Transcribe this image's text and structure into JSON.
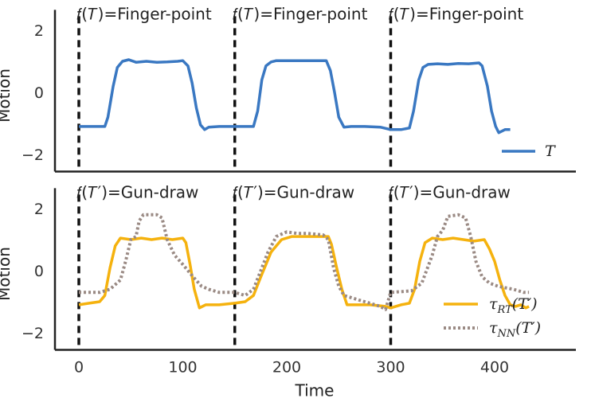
{
  "chart_data": [
    {
      "type": "line",
      "panel": "top",
      "ylabel": "Motion",
      "xlabel": "",
      "ylim": [
        -2.5,
        2.4
      ],
      "xlim": [
        -10,
        460
      ],
      "yticks": [
        "2",
        "0",
        "−2"
      ],
      "ytick_values": [
        2,
        0,
        -2
      ],
      "segment_boundaries": [
        0,
        150,
        300
      ],
      "segment_labels": [
        "𝑓(𝑇)=Finger-point",
        "𝑓(𝑇)=Finger-point",
        "𝑓(𝑇)=Finger-point"
      ],
      "legend_position": "lower-right",
      "colors": {
        "T": "#3a78c2"
      },
      "series": [
        {
          "name": "𝑇",
          "style": "solid",
          "points": [
            [
              0,
              -1.1
            ],
            [
              15,
              -1.1
            ],
            [
              25,
              -1.1
            ],
            [
              28,
              -0.8
            ],
            [
              33,
              0.2
            ],
            [
              37,
              0.8
            ],
            [
              42,
              1.0
            ],
            [
              48,
              1.05
            ],
            [
              55,
              0.97
            ],
            [
              65,
              1.0
            ],
            [
              75,
              0.97
            ],
            [
              85,
              0.98
            ],
            [
              95,
              1.0
            ],
            [
              100,
              1.02
            ],
            [
              105,
              0.85
            ],
            [
              109,
              0.3
            ],
            [
              113,
              -0.5
            ],
            [
              117,
              -1.05
            ],
            [
              121,
              -1.2
            ],
            [
              125,
              -1.12
            ],
            [
              135,
              -1.1
            ],
            [
              150,
              -1.1
            ],
            [
              160,
              -1.1
            ],
            [
              168,
              -1.1
            ],
            [
              172,
              -0.6
            ],
            [
              176,
              0.4
            ],
            [
              180,
              0.85
            ],
            [
              185,
              0.98
            ],
            [
              190,
              1.02
            ],
            [
              200,
              1.02
            ],
            [
              210,
              1.02
            ],
            [
              220,
              1.02
            ],
            [
              230,
              1.02
            ],
            [
              238,
              1.02
            ],
            [
              242,
              0.7
            ],
            [
              246,
              0.0
            ],
            [
              250,
              -0.8
            ],
            [
              255,
              -1.12
            ],
            [
              262,
              -1.1
            ],
            [
              275,
              -1.1
            ],
            [
              290,
              -1.12
            ],
            [
              300,
              -1.2
            ],
            [
              310,
              -1.2
            ],
            [
              318,
              -1.15
            ],
            [
              322,
              -0.6
            ],
            [
              327,
              0.4
            ],
            [
              331,
              0.8
            ],
            [
              336,
              0.9
            ],
            [
              345,
              0.92
            ],
            [
              355,
              0.9
            ],
            [
              365,
              0.93
            ],
            [
              375,
              0.92
            ],
            [
              385,
              0.95
            ],
            [
              388,
              0.85
            ],
            [
              393,
              0.2
            ],
            [
              397,
              -0.6
            ],
            [
              401,
              -1.1
            ],
            [
              404,
              -1.3
            ],
            [
              410,
              -1.2
            ],
            [
              415,
              -1.2
            ]
          ]
        }
      ]
    },
    {
      "type": "line",
      "panel": "bottom",
      "ylabel": "Motion",
      "xlabel": "Time",
      "ylim": [
        -2.5,
        2.4
      ],
      "xlim": [
        -10,
        460
      ],
      "xticks": [
        "0",
        "100",
        "200",
        "300",
        "400"
      ],
      "xtick_values": [
        0,
        100,
        200,
        300,
        400
      ],
      "yticks": [
        "2",
        "0",
        "−2"
      ],
      "ytick_values": [
        2,
        0,
        -2
      ],
      "segment_boundaries": [
        0,
        150,
        300
      ],
      "segment_labels": [
        "𝑓(𝑇′)=Gun-draw",
        "𝑓(𝑇′)=Gun-draw",
        "𝑓(𝑇′)=Gun-draw"
      ],
      "legend_position": "lower-right",
      "colors": {
        "tau_RT": "#f5b20e",
        "tau_NN": "#9a8a84"
      },
      "series": [
        {
          "name": "τ_RT(T′)",
          "legend_main": "τ",
          "legend_sub": "RT",
          "legend_arg": "(T′)",
          "style": "solid",
          "points": [
            [
              0,
              -1.1
            ],
            [
              10,
              -1.05
            ],
            [
              20,
              -1.0
            ],
            [
              25,
              -0.8
            ],
            [
              30,
              0.1
            ],
            [
              35,
              0.8
            ],
            [
              40,
              1.05
            ],
            [
              50,
              1.0
            ],
            [
              60,
              1.05
            ],
            [
              70,
              1.0
            ],
            [
              80,
              1.05
            ],
            [
              90,
              1.0
            ],
            [
              100,
              1.05
            ],
            [
              103,
              0.9
            ],
            [
              107,
              0.2
            ],
            [
              111,
              -0.6
            ],
            [
              116,
              -1.2
            ],
            [
              122,
              -1.1
            ],
            [
              135,
              -1.1
            ],
            [
              150,
              -1.05
            ],
            [
              160,
              -1.0
            ],
            [
              168,
              -0.8
            ],
            [
              175,
              -0.2
            ],
            [
              185,
              0.6
            ],
            [
              195,
              1.0
            ],
            [
              205,
              1.1
            ],
            [
              220,
              1.1
            ],
            [
              240,
              1.1
            ],
            [
              243,
              0.85
            ],
            [
              248,
              0.1
            ],
            [
              253,
              -0.6
            ],
            [
              258,
              -1.1
            ],
            [
              265,
              -1.1
            ],
            [
              280,
              -1.1
            ],
            [
              295,
              -1.15
            ],
            [
              300,
              -1.2
            ],
            [
              310,
              -1.1
            ],
            [
              318,
              -1.05
            ],
            [
              323,
              -0.6
            ],
            [
              328,
              0.3
            ],
            [
              333,
              0.9
            ],
            [
              340,
              1.05
            ],
            [
              350,
              1.0
            ],
            [
              360,
              1.05
            ],
            [
              370,
              1.0
            ],
            [
              380,
              0.95
            ],
            [
              390,
              1.0
            ],
            [
              395,
              0.7
            ],
            [
              400,
              0.3
            ],
            [
              405,
              -0.3
            ],
            [
              410,
              -0.8
            ],
            [
              415,
              -1.1
            ],
            [
              420,
              -1.15
            ],
            [
              425,
              -1.1
            ],
            [
              430,
              -1.2
            ],
            [
              433,
              -1.15
            ]
          ]
        },
        {
          "name": "τ_NN(T′)",
          "legend_main": "τ",
          "legend_sub": "NN",
          "legend_arg": "(T′)",
          "style": "dotted",
          "points": [
            [
              0,
              -0.7
            ],
            [
              20,
              -0.7
            ],
            [
              30,
              -0.6
            ],
            [
              40,
              -0.3
            ],
            [
              45,
              0.3
            ],
            [
              50,
              1.0
            ],
            [
              55,
              1.1
            ],
            [
              58,
              1.6
            ],
            [
              62,
              1.8
            ],
            [
              75,
              1.8
            ],
            [
              80,
              1.7
            ],
            [
              85,
              1.0
            ],
            [
              92,
              0.5
            ],
            [
              100,
              0.2
            ],
            [
              110,
              -0.2
            ],
            [
              118,
              -0.5
            ],
            [
              125,
              -0.6
            ],
            [
              135,
              -0.7
            ],
            [
              150,
              -0.7
            ],
            [
              160,
              -0.8
            ],
            [
              168,
              -0.6
            ],
            [
              175,
              0.0
            ],
            [
              182,
              0.6
            ],
            [
              190,
              1.1
            ],
            [
              200,
              1.25
            ],
            [
              210,
              1.2
            ],
            [
              220,
              1.2
            ],
            [
              235,
              1.15
            ],
            [
              240,
              1.0
            ],
            [
              245,
              0.1
            ],
            [
              250,
              -0.5
            ],
            [
              255,
              -0.8
            ],
            [
              260,
              -0.85
            ],
            [
              270,
              -0.95
            ],
            [
              280,
              -1.05
            ],
            [
              290,
              -1.15
            ],
            [
              295,
              -1.25
            ],
            [
              300,
              -0.7
            ],
            [
              320,
              -0.65
            ],
            [
              330,
              -0.4
            ],
            [
              340,
              0.5
            ],
            [
              345,
              1.1
            ],
            [
              350,
              1.3
            ],
            [
              355,
              1.75
            ],
            [
              365,
              1.8
            ],
            [
              372,
              1.7
            ],
            [
              377,
              1.1
            ],
            [
              382,
              0.3
            ],
            [
              388,
              -0.2
            ],
            [
              395,
              -0.4
            ],
            [
              403,
              -0.5
            ],
            [
              410,
              -0.55
            ],
            [
              418,
              -0.6
            ],
            [
              428,
              -0.7
            ],
            [
              433,
              -0.7
            ]
          ]
        }
      ]
    }
  ]
}
